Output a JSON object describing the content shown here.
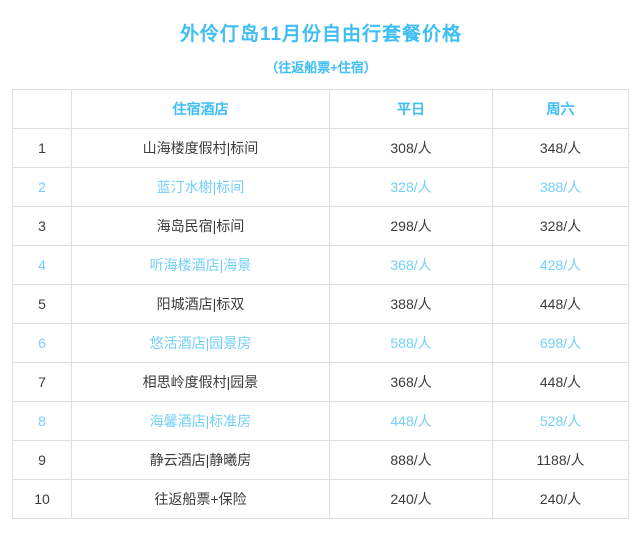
{
  "page": {
    "title": "外伶仃岛11月份自由行套餐价格",
    "subtitle": "（往返船票+住宿）"
  },
  "colors": {
    "accent_blue": "#3ebef5",
    "highlight_row_blue": "#74cff7",
    "text_dark": "#3c3c3c",
    "table_border": "#dedede"
  },
  "table": {
    "headers": {
      "index": "",
      "hotel": "住宿酒店",
      "weekday": "平日",
      "saturday": "周六"
    },
    "rows": [
      {
        "no": "1",
        "hotel": "山海楼度假村|标间",
        "weekday": "308/人",
        "saturday": "348/人",
        "highlight": false
      },
      {
        "no": "2",
        "hotel": "蓝汀水榭|标间",
        "weekday": "328/人",
        "saturday": "388/人",
        "highlight": true
      },
      {
        "no": "3",
        "hotel": "海岛民宿|标间",
        "weekday": "298/人",
        "saturday": "328/人",
        "highlight": false
      },
      {
        "no": "4",
        "hotel": "听海楼酒店|海景",
        "weekday": "368/人",
        "saturday": "428/人",
        "highlight": true
      },
      {
        "no": "5",
        "hotel": "阳城酒店|标双",
        "weekday": "388/人",
        "saturday": "448/人",
        "highlight": false
      },
      {
        "no": "6",
        "hotel": "悠活酒店|园景房",
        "weekday": "588/人",
        "saturday": "698/人",
        "highlight": true
      },
      {
        "no": "7",
        "hotel": "相思岭度假村|园景",
        "weekday": "368/人",
        "saturday": "448/人",
        "highlight": false
      },
      {
        "no": "8",
        "hotel": "海馨酒店|标准房",
        "weekday": "448/人",
        "saturday": "528/人",
        "highlight": true
      },
      {
        "no": "9",
        "hotel": "静云酒店|静曦房",
        "weekday": "888/人",
        "saturday": "1188/人",
        "highlight": false
      },
      {
        "no": "10",
        "hotel": "往返船票+保险",
        "weekday": "240/人",
        "saturday": "240/人",
        "highlight": false
      }
    ]
  }
}
